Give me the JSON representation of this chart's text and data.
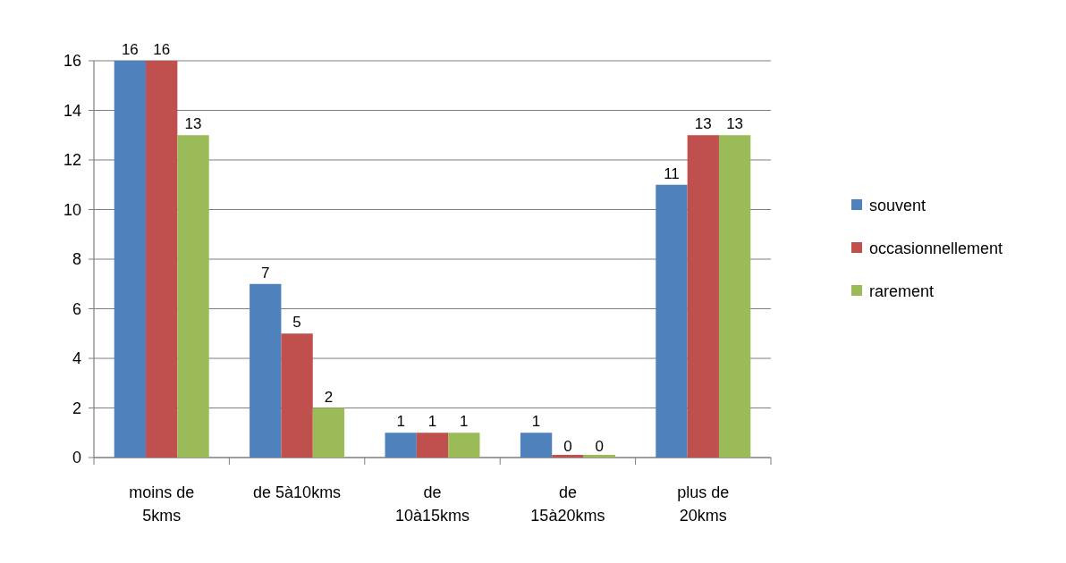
{
  "chart_data": {
    "type": "bar",
    "categories": [
      "moins de 5kms",
      "de 5à10kms",
      "de 10à15kms",
      "de 15à20kms",
      "plus de 20kms"
    ],
    "series": [
      {
        "name": "souvent",
        "color": "#4f81bd",
        "values": [
          16,
          7,
          1,
          1,
          11
        ]
      },
      {
        "name": "occasionnellement",
        "color": "#c0504d",
        "values": [
          16,
          5,
          1,
          0,
          13
        ]
      },
      {
        "name": "rarement",
        "color": "#9bbb59",
        "values": [
          13,
          2,
          1,
          0,
          13
        ]
      }
    ],
    "ylim": [
      0,
      16
    ],
    "yticks": [
      0,
      2,
      4,
      6,
      8,
      10,
      12,
      14,
      16
    ],
    "grid": "y",
    "legend": "right",
    "data_labels": true
  }
}
